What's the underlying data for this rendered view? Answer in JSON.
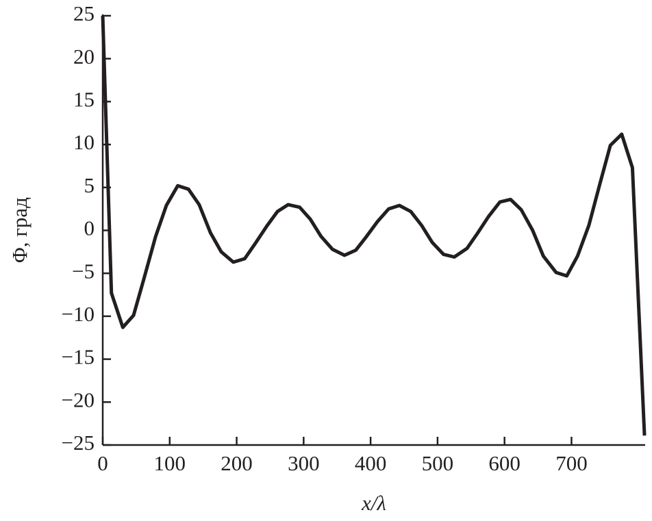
{
  "chart_data": {
    "type": "line",
    "y_label": "Φ, град",
    "x_label": "x/λ",
    "xlim": [
      0,
      810
    ],
    "ylim": [
      -25,
      25
    ],
    "xticks": [
      0,
      100,
      200,
      300,
      400,
      500,
      600,
      700
    ],
    "yticks": [
      {
        "value": -25,
        "label": "−25"
      },
      {
        "value": -20,
        "label": "−20"
      },
      {
        "value": -15,
        "label": "−15"
      },
      {
        "value": -10,
        "label": "−10"
      },
      {
        "value": -5,
        "label": "−5"
      },
      0,
      5,
      10,
      15,
      20,
      25
    ],
    "series": [
      {
        "color": "#231f20",
        "x": [
          0,
          13,
          30,
          46,
          62,
          79,
          95,
          112,
          128,
          144,
          161,
          177,
          195,
          212,
          228,
          245,
          261,
          277,
          294,
          310,
          326,
          343,
          361,
          378,
          394,
          410,
          427,
          443,
          460,
          476,
          492,
          509,
          525,
          544,
          560,
          576,
          593,
          609,
          625,
          642,
          658,
          677,
          693,
          709,
          726,
          742,
          758,
          775,
          791,
          809
        ],
        "values": [
          25,
          -7.3,
          -11.3,
          -9.9,
          -5.5,
          -0.7,
          2.9,
          5.2,
          4.8,
          3.0,
          -0.3,
          -2.5,
          -3.7,
          -3.3,
          -1.5,
          0.5,
          2.2,
          3.0,
          2.7,
          1.3,
          -0.7,
          -2.2,
          -2.9,
          -2.3,
          -0.7,
          1.0,
          2.5,
          2.9,
          2.2,
          0.6,
          -1.4,
          -2.8,
          -3.1,
          -2.1,
          -0.3,
          1.6,
          3.3,
          3.6,
          2.4,
          0,
          -3.0,
          -4.9,
          -5.3,
          -3.0,
          0.6,
          5.3,
          9.9,
          11.2,
          7.3,
          -23.9
        ]
      }
    ]
  }
}
